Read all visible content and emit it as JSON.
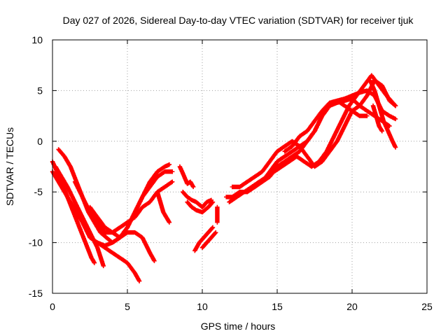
{
  "chart_data": {
    "type": "scatter",
    "title": "Day 027 of 2026, Sidereal Day-to-day VTEC variation (SDTVAR) for receiver tjuk",
    "xlabel": "GPS time / hours",
    "ylabel": "SDTVAR / TECUs",
    "xlim": [
      0,
      25
    ],
    "ylim": [
      -15,
      10
    ],
    "xticks": [
      "0",
      "5",
      "10",
      "15",
      "20",
      "25"
    ],
    "yticks": [
      "10",
      "5",
      "0",
      "-5",
      "-10",
      "-15"
    ],
    "grid": true,
    "legend": "none",
    "marker": "plus",
    "color": "#ff0000",
    "series": [
      {
        "x": [
          0.0,
          0.3,
          0.6,
          1.0,
          1.4,
          1.8,
          2.2,
          2.6,
          2.8
        ],
        "y": [
          -2.0,
          -3.0,
          -4.0,
          -5.5,
          -7.0,
          -8.5,
          -10.0,
          -11.5,
          -12.0
        ]
      },
      {
        "x": [
          0.2,
          0.6,
          1.0,
          1.5,
          2.0,
          2.5,
          3.0,
          3.4
        ],
        "y": [
          -2.5,
          -3.5,
          -4.5,
          -6.0,
          -7.5,
          -9.0,
          -10.5,
          -12.3
        ]
      },
      {
        "x": [
          0.0,
          0.4,
          0.8,
          1.2,
          1.6,
          2.0,
          2.5,
          3.0,
          3.5,
          4.0,
          4.5,
          5.0,
          5.5,
          5.8
        ],
        "y": [
          -3.0,
          -4.0,
          -5.0,
          -6.0,
          -7.0,
          -8.0,
          -9.5,
          -10.0,
          -10.5,
          -11.0,
          -11.5,
          -12.0,
          -13.0,
          -13.8
        ]
      },
      {
        "x": [
          0.4,
          0.8,
          1.2,
          1.6,
          2.0,
          2.4,
          2.8,
          3.2,
          3.6,
          4.0,
          4.5,
          5.0,
          5.5,
          6.0,
          6.5,
          7.0,
          7.5,
          7.8
        ],
        "y": [
          -0.8,
          -1.5,
          -2.5,
          -4.0,
          -5.5,
          -7.0,
          -8.0,
          -9.0,
          -9.5,
          -10.0,
          -9.5,
          -8.5,
          -7.0,
          -5.5,
          -4.0,
          -3.0,
          -2.5,
          -2.3
        ]
      },
      {
        "x": [
          1.5,
          2.0,
          2.5,
          3.0,
          3.5,
          4.0,
          4.5,
          5.0,
          5.5,
          6.0,
          6.5,
          7.0,
          7.5,
          8.0
        ],
        "y": [
          -4.0,
          -5.5,
          -7.0,
          -8.0,
          -9.0,
          -9.0,
          -9.5,
          -8.5,
          -7.0,
          -5.5,
          -4.5,
          -3.5,
          -3.0,
          -3.0
        ]
      },
      {
        "x": [
          2.5,
          3.0,
          3.5,
          4.0,
          4.5,
          5.0,
          5.5,
          6.0,
          6.5,
          7.0,
          7.5,
          8.0
        ],
        "y": [
          -6.5,
          -7.5,
          -8.5,
          -9.0,
          -8.5,
          -8.0,
          -7.5,
          -6.5,
          -6.0,
          -5.0,
          -4.5,
          -4.0
        ]
      },
      {
        "x": [
          3.0,
          3.5,
          4.0,
          4.5,
          5.0,
          5.5,
          6.0,
          6.5,
          6.8
        ],
        "y": [
          -10.0,
          -10.3,
          -10.0,
          -9.5,
          -9.0,
          -9.0,
          -9.5,
          -11.0,
          -11.8
        ]
      },
      {
        "x": [
          7.0,
          7.2,
          7.4,
          7.6,
          7.8
        ],
        "y": [
          -5.0,
          -6.0,
          -7.0,
          -7.5,
          -8.0
        ]
      },
      {
        "x": [
          8.5,
          8.8,
          9.0,
          9.2,
          9.4
        ],
        "y": [
          -2.5,
          -3.5,
          -4.2,
          -4.0,
          -4.5
        ]
      },
      {
        "x": [
          8.7,
          9.0,
          9.3,
          9.6,
          10.0,
          10.3,
          10.6
        ],
        "y": [
          -5.0,
          -5.5,
          -5.8,
          -6.0,
          -6.5,
          -6.0,
          -5.8
        ]
      },
      {
        "x": [
          9.0,
          9.3,
          9.6,
          10.0,
          10.4,
          10.7
        ],
        "y": [
          -6.0,
          -6.5,
          -6.8,
          -7.0,
          -6.5,
          -6.0
        ]
      },
      {
        "x": [
          9.5,
          9.8,
          10.1,
          10.4,
          10.7
        ],
        "y": [
          -10.8,
          -10.0,
          -9.5,
          -9.0,
          -8.5
        ]
      },
      {
        "x": [
          10.0,
          10.3,
          10.6,
          10.9
        ],
        "y": [
          -10.5,
          -10.0,
          -9.5,
          -9.0
        ]
      },
      {
        "x": [
          11.0,
          11.0,
          11.0
        ],
        "y": [
          -6.5,
          -7.5,
          -8.0
        ]
      },
      {
        "x": [
          11.6,
          12.0,
          12.5,
          13.0,
          13.5,
          14.0,
          14.5,
          15.0,
          15.5,
          16.0,
          16.5,
          17.0,
          17.5,
          18.0,
          18.5,
          19.0,
          19.5,
          20.0,
          20.5,
          21.0,
          21.5,
          22.0,
          22.5,
          22.9
        ],
        "y": [
          -5.5,
          -5.5,
          -5.0,
          -5.0,
          -4.5,
          -4.0,
          -3.5,
          -2.5,
          -2.0,
          -1.5,
          -1.0,
          0.0,
          1.0,
          2.5,
          3.5,
          4.0,
          4.2,
          4.5,
          4.8,
          5.0,
          4.5,
          3.0,
          2.5,
          2.2
        ]
      },
      {
        "x": [
          11.8,
          12.3,
          12.8,
          13.3,
          13.8,
          14.3,
          14.8,
          15.3,
          15.8,
          16.3,
          16.8,
          17.3,
          17.8,
          18.3,
          18.8,
          19.3,
          19.8,
          20.3,
          20.8,
          21.3,
          21.8,
          22.3,
          22.9
        ],
        "y": [
          -6.0,
          -5.5,
          -5.0,
          -4.5,
          -4.0,
          -3.5,
          -3.0,
          -2.5,
          -2.0,
          -1.5,
          -2.0,
          -2.5,
          -2.0,
          -1.0,
          0.5,
          2.0,
          3.5,
          4.5,
          5.5,
          6.5,
          5.5,
          4.5,
          3.5
        ]
      },
      {
        "x": [
          12.0,
          12.5,
          13.0,
          13.5,
          14.0,
          14.5,
          15.0,
          15.5,
          16.0,
          16.5,
          17.0,
          17.5,
          18.0,
          18.5,
          19.0,
          19.5,
          20.0,
          20.5,
          21.0,
          21.5,
          22.0,
          22.5,
          22.9
        ],
        "y": [
          -4.5,
          -4.5,
          -4.0,
          -3.5,
          -3.0,
          -2.0,
          -1.0,
          -0.5,
          0.0,
          -0.5,
          -1.5,
          -2.5,
          -2.0,
          -1.0,
          0.0,
          1.5,
          3.0,
          3.5,
          4.5,
          6.0,
          5.5,
          4.0,
          3.5
        ]
      },
      {
        "x": [
          13.0,
          13.5,
          14.0,
          14.5,
          15.0,
          15.5,
          16.0,
          16.5,
          17.0,
          17.5,
          18.0,
          18.5,
          19.0,
          19.5,
          20.0,
          20.5,
          21.0,
          21.5,
          22.0,
          22.5
        ],
        "y": [
          -5.0,
          -4.5,
          -4.0,
          -3.0,
          -2.0,
          -1.5,
          -1.0,
          -0.5,
          0.0,
          1.0,
          2.5,
          3.5,
          3.8,
          4.0,
          4.2,
          3.5,
          3.0,
          2.5,
          2.0,
          1.5
        ]
      },
      {
        "x": [
          15.5,
          16.0,
          16.5,
          17.0,
          17.5,
          18.0,
          18.5,
          19.0,
          19.5,
          20.0,
          20.5,
          21.0
        ],
        "y": [
          -1.0,
          -0.5,
          0.5,
          1.0,
          2.0,
          3.0,
          3.8,
          4.0,
          3.5,
          3.0,
          2.5,
          2.5
        ]
      },
      {
        "x": [
          21.2,
          21.5,
          21.8,
          22.1,
          22.4,
          22.7,
          22.9
        ],
        "y": [
          6.0,
          5.0,
          3.5,
          2.0,
          1.0,
          0.0,
          -0.6
        ]
      },
      {
        "x": [
          21.4,
          21.6,
          21.8,
          22.0
        ],
        "y": [
          3.5,
          2.5,
          1.5,
          1.0
        ]
      }
    ]
  }
}
